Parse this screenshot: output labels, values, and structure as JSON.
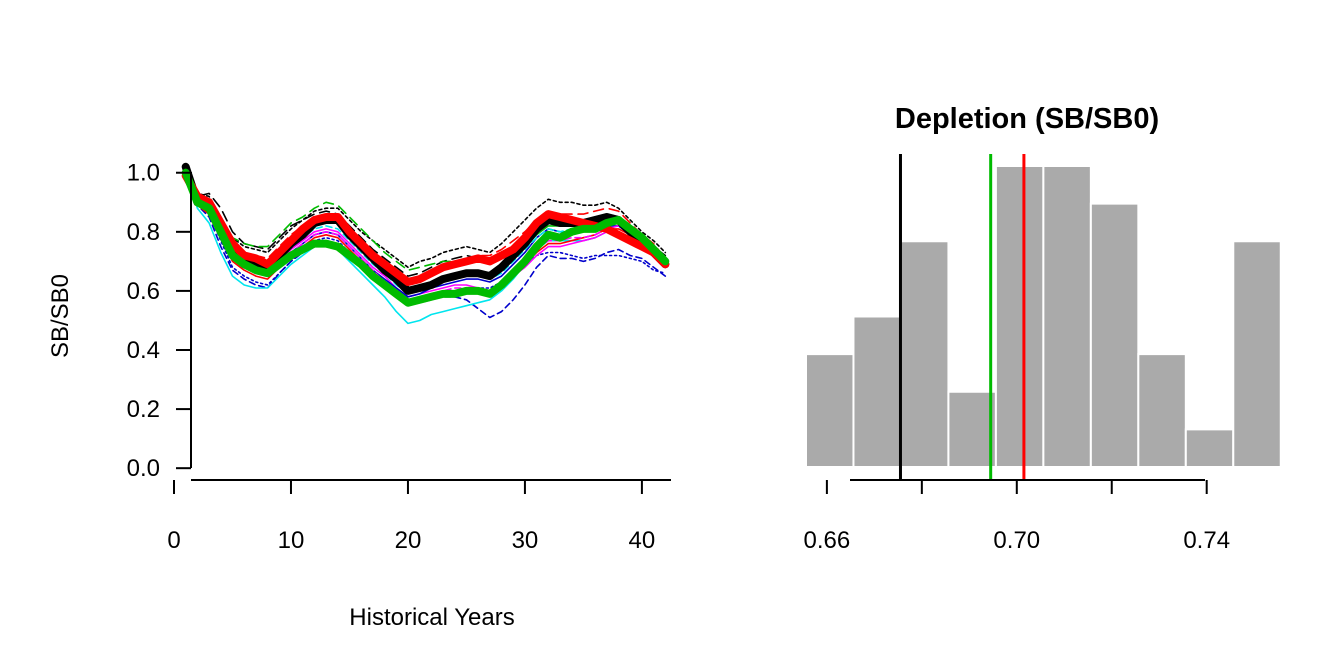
{
  "chart_data": [
    {
      "type": "line",
      "title": "",
      "xlabel": "Historical Years",
      "ylabel": "SB/SB0",
      "xlim": [
        0,
        43
      ],
      "ylim": [
        -0.04,
        1.06
      ],
      "xticks": [
        0,
        10,
        20,
        30,
        40
      ],
      "yticks": [
        "0.0",
        "0.2",
        "0.4",
        "0.6",
        "0.8",
        "1.0"
      ],
      "x": [
        1,
        2,
        3,
        4,
        5,
        6,
        7,
        8,
        9,
        10,
        11,
        12,
        13,
        14,
        15,
        16,
        17,
        18,
        19,
        20,
        21,
        22,
        23,
        24,
        25,
        26,
        27,
        28,
        29,
        30,
        31,
        32,
        33,
        34,
        35,
        36,
        37,
        38,
        39,
        40,
        41,
        42
      ],
      "series": [
        {
          "color": "#000000",
          "width": 8,
          "dash": "",
          "values": [
            1.02,
            0.9,
            0.89,
            0.82,
            0.74,
            0.71,
            0.69,
            0.68,
            0.72,
            0.76,
            0.79,
            0.83,
            0.84,
            0.84,
            0.79,
            0.75,
            0.71,
            0.67,
            0.64,
            0.6,
            0.61,
            0.62,
            0.64,
            0.65,
            0.66,
            0.66,
            0.65,
            0.68,
            0.72,
            0.76,
            0.81,
            0.84,
            0.83,
            0.83,
            0.83,
            0.84,
            0.85,
            0.84,
            0.8,
            0.76,
            0.73,
            0.69
          ]
        },
        {
          "color": "#ff0000",
          "width": 8,
          "dash": "",
          "values": [
            0.99,
            0.92,
            0.9,
            0.83,
            0.76,
            0.72,
            0.71,
            0.69,
            0.73,
            0.77,
            0.81,
            0.84,
            0.85,
            0.85,
            0.8,
            0.76,
            0.72,
            0.69,
            0.66,
            0.63,
            0.64,
            0.66,
            0.68,
            0.69,
            0.7,
            0.71,
            0.7,
            0.72,
            0.74,
            0.78,
            0.83,
            0.86,
            0.85,
            0.84,
            0.83,
            0.82,
            0.81,
            0.79,
            0.77,
            0.75,
            0.73,
            0.69
          ]
        },
        {
          "color": "#00bb00",
          "width": 8,
          "dash": "",
          "values": [
            1.0,
            0.9,
            0.88,
            0.8,
            0.72,
            0.69,
            0.67,
            0.66,
            0.69,
            0.72,
            0.74,
            0.76,
            0.76,
            0.75,
            0.72,
            0.69,
            0.65,
            0.62,
            0.59,
            0.56,
            0.57,
            0.58,
            0.59,
            0.59,
            0.6,
            0.6,
            0.59,
            0.62,
            0.66,
            0.7,
            0.75,
            0.79,
            0.78,
            0.8,
            0.81,
            0.81,
            0.83,
            0.84,
            0.81,
            0.78,
            0.74,
            0.7
          ]
        },
        {
          "color": "#000000",
          "width": 1.6,
          "dash": "3,3",
          "values": [
            1.01,
            0.93,
            0.92,
            0.85,
            0.78,
            0.75,
            0.74,
            0.73,
            0.77,
            0.81,
            0.84,
            0.87,
            0.88,
            0.88,
            0.84,
            0.8,
            0.77,
            0.74,
            0.71,
            0.68,
            0.7,
            0.71,
            0.73,
            0.74,
            0.75,
            0.74,
            0.73,
            0.76,
            0.8,
            0.84,
            0.88,
            0.91,
            0.9,
            0.9,
            0.89,
            0.89,
            0.9,
            0.88,
            0.84,
            0.8,
            0.77,
            0.73
          ]
        },
        {
          "color": "#000000",
          "width": 1.6,
          "dash": "10,6",
          "values": [
            1.01,
            0.92,
            0.93,
            0.88,
            0.8,
            0.76,
            0.75,
            0.74,
            0.78,
            0.82,
            0.84,
            0.86,
            0.87,
            0.86,
            0.82,
            0.78,
            0.74,
            0.71,
            0.68,
            0.65,
            0.66,
            0.68,
            0.7,
            0.71,
            0.72,
            0.71,
            0.7,
            0.72,
            0.75,
            0.79,
            0.83,
            0.86,
            0.85,
            0.85,
            0.84,
            0.85,
            0.86,
            0.85,
            0.81,
            0.77,
            0.75,
            0.72
          ]
        },
        {
          "color": "#00bb00",
          "width": 1.6,
          "dash": "10,6",
          "values": [
            1.0,
            0.91,
            0.9,
            0.84,
            0.78,
            0.76,
            0.75,
            0.75,
            0.79,
            0.83,
            0.85,
            0.88,
            0.9,
            0.89,
            0.85,
            0.81,
            0.77,
            0.73,
            0.7,
            0.67,
            0.68,
            0.69,
            0.7,
            0.7,
            0.71,
            0.7,
            0.69,
            0.71,
            0.74,
            0.78,
            0.82,
            0.85,
            0.84,
            0.84,
            0.83,
            0.83,
            0.84,
            0.83,
            0.8,
            0.77,
            0.75,
            0.71
          ]
        },
        {
          "color": "#0000cc",
          "width": 1.6,
          "dash": "6,4",
          "values": [
            1.0,
            0.89,
            0.85,
            0.75,
            0.67,
            0.64,
            0.62,
            0.61,
            0.66,
            0.7,
            0.73,
            0.76,
            0.77,
            0.76,
            0.72,
            0.68,
            0.64,
            0.61,
            0.58,
            0.55,
            0.56,
            0.57,
            0.58,
            0.58,
            0.57,
            0.54,
            0.51,
            0.53,
            0.57,
            0.62,
            0.68,
            0.72,
            0.71,
            0.71,
            0.7,
            0.71,
            0.73,
            0.74,
            0.72,
            0.71,
            0.68,
            0.65
          ]
        },
        {
          "color": "#0000cc",
          "width": 1.6,
          "dash": "2,3",
          "values": [
            1.0,
            0.89,
            0.86,
            0.77,
            0.68,
            0.65,
            0.63,
            0.62,
            0.66,
            0.7,
            0.74,
            0.77,
            0.78,
            0.77,
            0.73,
            0.69,
            0.65,
            0.62,
            0.59,
            0.56,
            0.57,
            0.58,
            0.59,
            0.6,
            0.6,
            0.61,
            0.61,
            0.63,
            0.66,
            0.69,
            0.72,
            0.73,
            0.73,
            0.72,
            0.71,
            0.72,
            0.72,
            0.72,
            0.71,
            0.7,
            0.67,
            0.66
          ]
        },
        {
          "color": "#00e5ee",
          "width": 1.6,
          "dash": "",
          "values": [
            1.0,
            0.88,
            0.83,
            0.73,
            0.65,
            0.62,
            0.61,
            0.61,
            0.65,
            0.69,
            0.72,
            0.75,
            0.75,
            0.74,
            0.7,
            0.66,
            0.62,
            0.58,
            0.53,
            0.49,
            0.5,
            0.52,
            0.53,
            0.54,
            0.55,
            0.56,
            0.57,
            0.6,
            0.64,
            0.69,
            0.74,
            0.77,
            0.77,
            0.77,
            0.77,
            0.78,
            0.8,
            0.8,
            0.78,
            0.75,
            0.72,
            0.69
          ]
        },
        {
          "color": "#ff00ff",
          "width": 1.6,
          "dash": "",
          "values": [
            1.0,
            0.9,
            0.88,
            0.8,
            0.72,
            0.68,
            0.67,
            0.66,
            0.7,
            0.74,
            0.77,
            0.8,
            0.81,
            0.8,
            0.76,
            0.72,
            0.68,
            0.65,
            0.61,
            0.58,
            0.59,
            0.6,
            0.61,
            0.62,
            0.62,
            0.61,
            0.6,
            0.62,
            0.65,
            0.68,
            0.72,
            0.75,
            0.75,
            0.76,
            0.77,
            0.78,
            0.8,
            0.8,
            0.78,
            0.75,
            0.72,
            0.68
          ]
        },
        {
          "color": "#ff0000",
          "width": 1.6,
          "dash": "10,6",
          "values": [
            1.0,
            0.92,
            0.9,
            0.84,
            0.77,
            0.73,
            0.72,
            0.71,
            0.75,
            0.79,
            0.82,
            0.85,
            0.86,
            0.85,
            0.81,
            0.77,
            0.73,
            0.7,
            0.67,
            0.64,
            0.65,
            0.67,
            0.69,
            0.7,
            0.71,
            0.72,
            0.72,
            0.74,
            0.77,
            0.8,
            0.84,
            0.87,
            0.86,
            0.86,
            0.86,
            0.87,
            0.88,
            0.87,
            0.83,
            0.79,
            0.76,
            0.71
          ]
        },
        {
          "color": "#ff0000",
          "width": 1.6,
          "dash": "",
          "values": [
            1.0,
            0.89,
            0.86,
            0.78,
            0.7,
            0.67,
            0.65,
            0.64,
            0.68,
            0.72,
            0.75,
            0.78,
            0.79,
            0.78,
            0.74,
            0.7,
            0.66,
            0.62,
            0.59,
            0.56,
            0.57,
            0.58,
            0.59,
            0.6,
            0.6,
            0.59,
            0.59,
            0.61,
            0.65,
            0.69,
            0.73,
            0.76,
            0.76,
            0.77,
            0.78,
            0.79,
            0.81,
            0.81,
            0.79,
            0.76,
            0.72,
            0.68
          ]
        },
        {
          "color": "#0000cc",
          "width": 1.6,
          "dash": "",
          "values": [
            1.0,
            0.9,
            0.87,
            0.79,
            0.71,
            0.68,
            0.66,
            0.65,
            0.69,
            0.73,
            0.76,
            0.79,
            0.8,
            0.79,
            0.75,
            0.71,
            0.67,
            0.64,
            0.61,
            0.58,
            0.59,
            0.61,
            0.62,
            0.63,
            0.64,
            0.64,
            0.63,
            0.65,
            0.69,
            0.73,
            0.78,
            0.81,
            0.8,
            0.8,
            0.8,
            0.81,
            0.82,
            0.82,
            0.79,
            0.76,
            0.73,
            0.7
          ]
        },
        {
          "color": "#00bb00",
          "width": 1.6,
          "dash": "",
          "values": [
            1.0,
            0.91,
            0.89,
            0.82,
            0.75,
            0.72,
            0.71,
            0.7,
            0.74,
            0.78,
            0.81,
            0.84,
            0.84,
            0.83,
            0.79,
            0.75,
            0.71,
            0.68,
            0.64,
            0.61,
            0.62,
            0.63,
            0.64,
            0.65,
            0.66,
            0.66,
            0.65,
            0.67,
            0.71,
            0.75,
            0.79,
            0.82,
            0.82,
            0.82,
            0.82,
            0.83,
            0.84,
            0.83,
            0.8,
            0.77,
            0.74,
            0.7
          ]
        },
        {
          "color": "#ff00ff",
          "width": 1.6,
          "dash": "6,4",
          "values": [
            1.0,
            0.9,
            0.87,
            0.79,
            0.71,
            0.68,
            0.66,
            0.65,
            0.69,
            0.73,
            0.76,
            0.79,
            0.8,
            0.79,
            0.75,
            0.71,
            0.67,
            0.63,
            0.6,
            0.57,
            0.58,
            0.59,
            0.6,
            0.61,
            0.61,
            0.61,
            0.6,
            0.62,
            0.66,
            0.7,
            0.74,
            0.77,
            0.77,
            0.78,
            0.78,
            0.79,
            0.81,
            0.82,
            0.8,
            0.77,
            0.74,
            0.7
          ]
        },
        {
          "color": "#00e5ee",
          "width": 1.6,
          "dash": "6,4",
          "values": [
            1.0,
            0.9,
            0.87,
            0.8,
            0.72,
            0.69,
            0.68,
            0.67,
            0.71,
            0.75,
            0.78,
            0.81,
            0.82,
            0.81,
            0.77,
            0.73,
            0.69,
            0.66,
            0.62,
            0.59,
            0.6,
            0.62,
            0.63,
            0.64,
            0.65,
            0.65,
            0.64,
            0.66,
            0.7,
            0.74,
            0.78,
            0.81,
            0.8,
            0.81,
            0.81,
            0.82,
            0.84,
            0.84,
            0.81,
            0.78,
            0.75,
            0.71
          ]
        }
      ]
    },
    {
      "type": "histogram",
      "title": "Depletion (SB/SB0)",
      "xlabel": "",
      "ylabel": "",
      "xlim": [
        0.6556,
        0.7487
      ],
      "xticks": [
        "0.66",
        "0.70",
        "0.74"
      ],
      "bin_width": 0.01,
      "bin_start": 0.6556,
      "counts": [
        3,
        4,
        6,
        2,
        8,
        8,
        7,
        3,
        1,
        6
      ],
      "bar_color": "#aaaaaa",
      "reference_lines": [
        {
          "value": 0.6755,
          "color": "#000000"
        },
        {
          "value": 0.6945,
          "color": "#00bb00"
        },
        {
          "value": 0.7015,
          "color": "#ff0000"
        }
      ]
    }
  ]
}
